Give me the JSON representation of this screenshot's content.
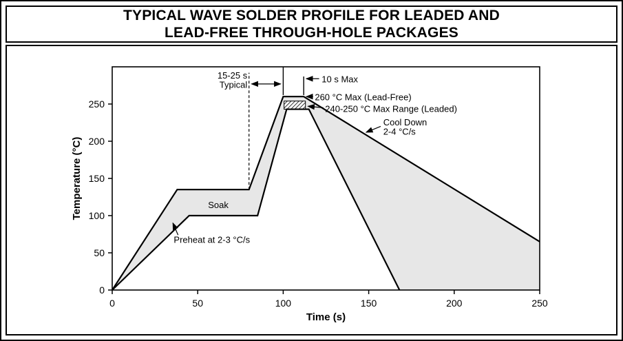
{
  "header": {
    "line1": "TYPICAL WAVE SOLDER PROFILE FOR LEADED AND",
    "line2": "LEAD-FREE THROUGH-HOLE PACKAGES"
  },
  "chart_data": {
    "type": "area",
    "title": "TYPICAL WAVE SOLDER PROFILE FOR LEADED AND LEAD-FREE THROUGH-HOLE PACKAGES",
    "xlabel": "Time (s)",
    "ylabel": "Temperature (°C)",
    "xlim": [
      0,
      250
    ],
    "ylim": [
      0,
      300
    ],
    "xticks": [
      0,
      50,
      100,
      150,
      200,
      250
    ],
    "yticks": [
      0,
      50,
      100,
      150,
      200,
      250
    ],
    "grid": false,
    "band_fill": "#e7e7e7",
    "line_color": "#000000",
    "series": [
      {
        "name": "upper-limit-profile",
        "points": [
          [
            0,
            0
          ],
          [
            38,
            135
          ],
          [
            80,
            135
          ],
          [
            100,
            260
          ],
          [
            112,
            260
          ],
          [
            250,
            65
          ]
        ]
      },
      {
        "name": "lower-limit-profile",
        "points": [
          [
            0,
            0
          ],
          [
            45,
            100
          ],
          [
            85,
            100
          ],
          [
            102,
            243
          ],
          [
            115,
            243
          ],
          [
            168,
            0
          ]
        ]
      }
    ],
    "region_polygon": [
      [
        0,
        0
      ],
      [
        38,
        135
      ],
      [
        80,
        135
      ],
      [
        100,
        260
      ],
      [
        112,
        260
      ],
      [
        250,
        65
      ],
      [
        250,
        0
      ],
      [
        168,
        0
      ],
      [
        115,
        243
      ],
      [
        102,
        243
      ],
      [
        85,
        100
      ],
      [
        45,
        100
      ]
    ],
    "peak_hatch": {
      "x": [
        100.5,
        113
      ],
      "temp": [
        243,
        254
      ]
    },
    "guides": {
      "dashed_vline": {
        "x": 80,
        "from": 135,
        "to": 292
      },
      "tick_line_left": {
        "x": 100,
        "from": 262,
        "to": 300
      },
      "tick_line_right": {
        "x": 112,
        "from": 262,
        "to": 287
      }
    },
    "annotations": [
      {
        "id": "typical-range",
        "lines": [
          "15-25 s",
          "Typical"
        ],
        "x": 79,
        "temp": 289,
        "align": "end",
        "arrow": {
          "x1": 81.5,
          "t1": 277,
          "x2": 98.5,
          "t2": 277,
          "heads": "both"
        }
      },
      {
        "id": "ten-s-max",
        "lines": [
          "10 s Max"
        ],
        "x": 122.5,
        "temp": 284,
        "align": "start",
        "arrow": {
          "x1": 121,
          "t1": 284,
          "x2": 113.5,
          "t2": 284,
          "heads": "end"
        }
      },
      {
        "id": "leadfree-max",
        "lines": [
          "260 °C Max (Lead-Free)"
        ],
        "x": 118.5,
        "temp": 259.5,
        "align": "start",
        "arrow": {
          "x1": 117.5,
          "t1": 260,
          "x2": 113.5,
          "t2": 260,
          "heads": "end"
        }
      },
      {
        "id": "leaded-max-range",
        "lines": [
          "240-250 °C Max Range (Leaded)"
        ],
        "x": 124.5,
        "temp": 244,
        "align": "start",
        "arrow": {
          "x1": 123.5,
          "t1": 245,
          "x2": 114.5,
          "t2": 247,
          "heads": "end"
        }
      },
      {
        "id": "cool-down",
        "lines": [
          "Cool Down",
          "2-4 °C/s"
        ],
        "x": 158.5,
        "temp": 226,
        "align": "start",
        "arrow": {
          "x1": 157,
          "t1": 220,
          "x2": 148.5,
          "t2": 212,
          "heads": "end"
        }
      },
      {
        "id": "soak",
        "lines": [
          "Soak"
        ],
        "x": 62,
        "temp": 115,
        "align": "middle"
      },
      {
        "id": "preheat",
        "lines": [
          "Preheat at 2-3 °C/s"
        ],
        "x": 36,
        "temp": 68,
        "align": "start",
        "arrow": {
          "x1": 38.5,
          "t1": 74,
          "x2": 35.5,
          "t2": 90,
          "heads": "end"
        }
      }
    ]
  }
}
